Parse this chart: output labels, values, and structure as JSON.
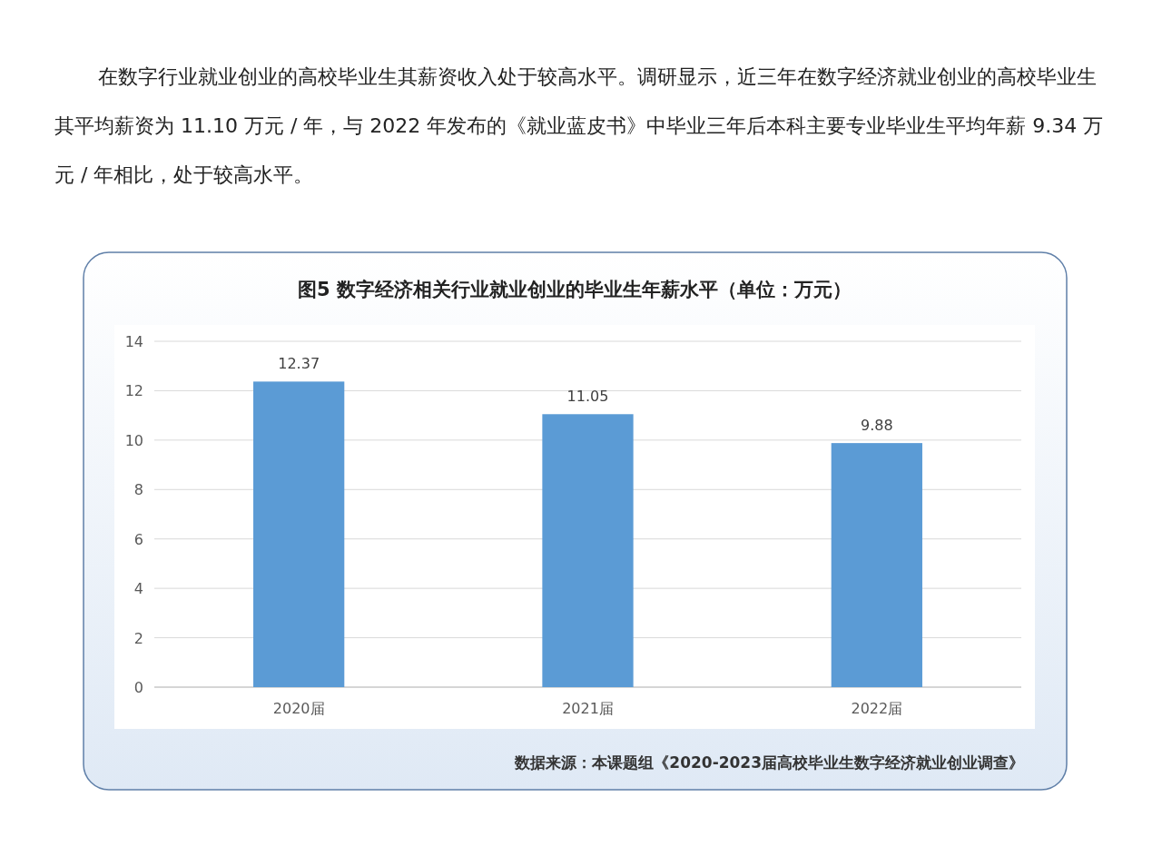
{
  "chart_data": {
    "type": "bar",
    "title": "图5  数字经济相关行业就业创业的毕业生年薪水平（单位：万元）",
    "categories": [
      "2020届",
      "2021届",
      "2022届"
    ],
    "values": [
      12.37,
      11.05,
      9.88
    ],
    "color": "#5b9bd5",
    "ylim": [
      0,
      14
    ],
    "yticks": [
      0,
      2,
      4,
      6,
      8,
      10,
      12,
      14
    ],
    "grid": "y",
    "data_labels": true,
    "annotations": [
      "在数字行业就业创业的高校毕业生其薪资收入处于较高水平。调研显示，近三年在数字经济就业创业的高校毕业生其平均薪资为 11.10 万元 / 年，与 2022 年发布的《就业蓝皮书》中毕业三年后本科主要专业毕业生平均年薪 9.34 万元 / 年相比，处于较高水平。",
      "数据来源：本课题组《2020-2023届高校毕业生数字经济就业创业调查》"
    ]
  }
}
